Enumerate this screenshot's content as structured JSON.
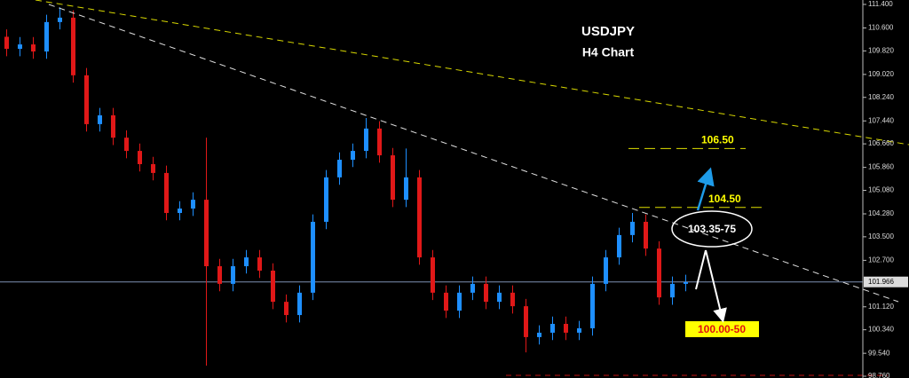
{
  "chart_data": {
    "type": "candlestick",
    "title": "USDJPY",
    "subtitle": "H4 Chart",
    "ylim": [
      98.7,
      111.55
    ],
    "yticks": [
      {
        "value": 111.4,
        "label": "111.400"
      },
      {
        "value": 110.6,
        "label": "110.600"
      },
      {
        "value": 109.82,
        "label": "109.820"
      },
      {
        "value": 109.02,
        "label": "109.020"
      },
      {
        "value": 108.24,
        "label": "108.240"
      },
      {
        "value": 107.44,
        "label": "107.440"
      },
      {
        "value": 106.66,
        "label": "106.660"
      },
      {
        "value": 105.86,
        "label": "105.860"
      },
      {
        "value": 105.08,
        "label": "105.080"
      },
      {
        "value": 104.28,
        "label": "104.280"
      },
      {
        "value": 103.5,
        "label": "103.500"
      },
      {
        "value": 102.7,
        "label": "102.700"
      },
      {
        "value": 101.12,
        "label": "101.120"
      },
      {
        "value": 100.34,
        "label": "100.340"
      },
      {
        "value": 99.54,
        "label": "99.540"
      },
      {
        "value": 98.76,
        "label": "98.760"
      }
    ],
    "last_price": 101.966,
    "up_color": "#1e8fff",
    "down_color": "#e01818",
    "open": [
      110.3,
      109.89,
      110.04,
      109.8,
      110.8,
      110.95,
      108.99,
      107.33,
      107.63,
      106.87,
      106.42,
      105.97,
      105.67,
      104.31,
      104.46,
      104.76,
      102.5,
      101.9,
      102.5,
      102.8,
      102.35,
      101.29,
      100.84,
      101.6,
      104.01,
      105.52,
      106.12,
      106.42,
      107.18,
      106.27,
      104.76,
      105.52,
      102.8,
      101.6,
      100.99,
      101.6,
      101.9,
      101.29,
      101.6,
      101.14,
      100.09,
      100.24,
      100.54,
      100.24,
      100.39,
      101.9,
      102.8,
      103.56,
      104.01,
      103.1,
      101.44,
      101.9
    ],
    "high": [
      110.55,
      110.29,
      110.29,
      111.05,
      111.3,
      111.2,
      109.24,
      107.88,
      107.88,
      107.12,
      106.67,
      106.22,
      105.92,
      104.71,
      105.01,
      106.87,
      102.75,
      102.75,
      103.05,
      103.05,
      102.6,
      101.54,
      101.85,
      104.26,
      105.77,
      106.37,
      106.67,
      107.54,
      107.43,
      106.52,
      106.5,
      105.77,
      103.05,
      101.85,
      101.85,
      102.15,
      102.15,
      101.85,
      101.85,
      101.39,
      100.49,
      100.79,
      100.79,
      100.64,
      102.15,
      103.05,
      103.81,
      104.31,
      104.26,
      103.35,
      102.15,
      102.21
    ],
    "low": [
      109.64,
      109.64,
      109.55,
      109.55,
      110.55,
      108.74,
      107.08,
      107.08,
      106.62,
      106.17,
      105.72,
      105.42,
      104.06,
      104.06,
      104.21,
      99.12,
      101.65,
      101.65,
      102.25,
      102.1,
      101.04,
      100.59,
      100.59,
      101.35,
      103.76,
      105.27,
      105.87,
      106.17,
      106.02,
      104.51,
      104.51,
      102.55,
      101.35,
      100.74,
      100.74,
      101.35,
      101.04,
      101.04,
      100.89,
      99.57,
      99.84,
      99.99,
      99.99,
      99.99,
      100.14,
      101.65,
      102.55,
      103.31,
      102.85,
      101.19,
      101.19,
      101.65
    ],
    "close": [
      109.89,
      110.04,
      109.8,
      110.8,
      110.95,
      108.99,
      107.33,
      107.63,
      106.87,
      106.42,
      105.97,
      105.67,
      104.31,
      104.46,
      104.76,
      102.5,
      101.9,
      102.5,
      102.8,
      102.35,
      101.29,
      100.84,
      101.6,
      104.01,
      105.52,
      106.12,
      106.42,
      107.18,
      106.27,
      104.76,
      105.52,
      102.8,
      101.6,
      100.99,
      101.6,
      101.9,
      101.29,
      101.6,
      101.14,
      100.09,
      100.24,
      100.54,
      100.24,
      100.39,
      101.9,
      102.8,
      103.56,
      104.01,
      103.1,
      101.44,
      101.9,
      101.96
    ],
    "levels": [
      {
        "value": 106.5,
        "label": "106.50"
      },
      {
        "value": 104.5,
        "label": "104.50"
      }
    ],
    "annotations": [
      "103.35-75",
      "100.00-50"
    ]
  }
}
